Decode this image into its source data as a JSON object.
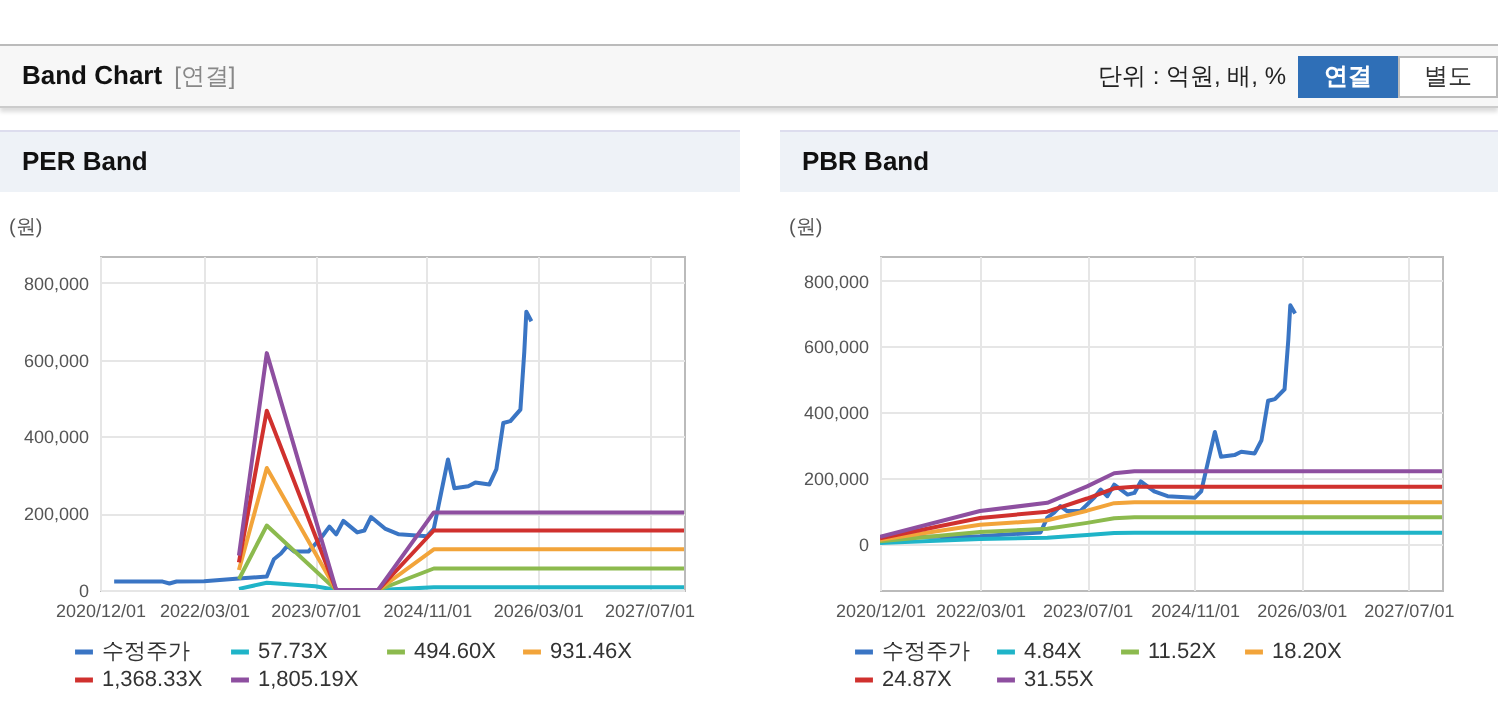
{
  "chart_data": [
    {
      "type": "other",
      "title": "Band Chart",
      "subtitle": "[연결]",
      "annotations": [
        "단위 : 억원, 배, %",
        "연결",
        "별도"
      ]
    },
    {
      "type": "line",
      "title": "PER Band",
      "ylabel": "(원)",
      "grid": true,
      "legend": "bottom",
      "xlim": [
        "2020-12",
        "2027-12"
      ],
      "ylim": [
        0,
        870000
      ],
      "xticks": [
        {
          "value": "2020-12-01",
          "label": "2020/12/01"
        },
        {
          "value": "2022-03-01",
          "label": "2022/03/01"
        },
        {
          "value": "2023-07-01",
          "label": "2023/07/01"
        },
        {
          "value": "2024-11-01",
          "label": "2024/11/01"
        },
        {
          "value": "2026-03-01",
          "label": "2026/03/01"
        },
        {
          "value": "2027-07-01",
          "label": "2027/07/01"
        }
      ],
      "yticks": [
        {
          "value": 0,
          "label": "0"
        },
        {
          "value": 200000,
          "label": "200,000"
        },
        {
          "value": 400000,
          "label": "400,000"
        },
        {
          "value": 600000,
          "label": "600,000"
        },
        {
          "value": 800000,
          "label": "800,000"
        }
      ],
      "series": [
        {
          "name": "수정주가",
          "color": "#3a75c4",
          "x": [
            "2021-02",
            "2021-09",
            "2021-10",
            "2021-11",
            "2022-03",
            "2022-08",
            "2022-12",
            "2023-01",
            "2023-02",
            "2023-03",
            "2023-04",
            "2023-06",
            "2023-08",
            "2023-09",
            "2023-10",
            "2023-11",
            "2024-01",
            "2024-02",
            "2024-03",
            "2024-05",
            "2024-07",
            "2024-11",
            "2024-12",
            "2025-01",
            "2025-02",
            "2025-03",
            "2025-05",
            "2025-06",
            "2025-08",
            "2025-09",
            "2025-10",
            "2025-11",
            "2025-12-15",
            "2026-01-01",
            "2026-01-10",
            "2026-02-01"
          ],
          "values": [
            22000,
            22000,
            17000,
            22000,
            23000,
            30000,
            35000,
            80000,
            95000,
            115000,
            100000,
            100000,
            140000,
            165000,
            145000,
            180000,
            150000,
            155000,
            190000,
            160000,
            145000,
            140000,
            160000,
            250000,
            340000,
            265000,
            270000,
            280000,
            275000,
            315000,
            435000,
            440000,
            470000,
            620000,
            725000,
            700000
          ]
        },
        {
          "name": "57.73X",
          "color": "#1fb4c8",
          "x": [
            "2022-08",
            "2022-12",
            "2023-07",
            "2023-10",
            "2024-04",
            "2024-12",
            "2027-12"
          ],
          "values": [
            3000,
            19000,
            10000,
            0,
            0,
            7000,
            7000
          ]
        },
        {
          "name": "494.60X",
          "color": "#8cba4e",
          "x": [
            "2022-08",
            "2022-12",
            "2023-10",
            "2024-04",
            "2024-12",
            "2027-12"
          ],
          "values": [
            28000,
            168000,
            0,
            0,
            56000,
            56000
          ]
        },
        {
          "name": "931.46X",
          "color": "#f2a43a",
          "x": [
            "2022-08",
            "2022-12",
            "2023-10",
            "2024-04",
            "2024-12",
            "2027-12"
          ],
          "values": [
            52000,
            318000,
            0,
            0,
            106000,
            106000
          ]
        },
        {
          "name": "1,368.33X",
          "color": "#d0312e",
          "x": [
            "2022-08",
            "2022-12",
            "2023-10",
            "2024-04",
            "2024-12",
            "2027-12"
          ],
          "values": [
            72000,
            467000,
            0,
            0,
            155000,
            155000
          ]
        },
        {
          "name": "1,805.19X",
          "color": "#8e4fa0",
          "x": [
            "2022-08",
            "2022-12",
            "2023-10",
            "2024-04",
            "2024-12",
            "2027-12"
          ],
          "values": [
            90000,
            617000,
            0,
            0,
            202000,
            202000
          ]
        }
      ]
    },
    {
      "type": "line",
      "title": "PBR Band",
      "ylabel": "(원)",
      "grid": true,
      "legend": "bottom",
      "xlim": [
        "2020-12",
        "2027-12"
      ],
      "ylim": [
        -140000,
        875000
      ],
      "xticks": [
        {
          "value": "2020-12-01",
          "label": "2020/12/01"
        },
        {
          "value": "2022-03-01",
          "label": "2022/03/01"
        },
        {
          "value": "2023-07-01",
          "label": "2023/07/01"
        },
        {
          "value": "2024-11-01",
          "label": "2024/11/01"
        },
        {
          "value": "2026-03-01",
          "label": "2026/03/01"
        },
        {
          "value": "2027-07-01",
          "label": "2027/07/01"
        }
      ],
      "yticks": [
        {
          "value": 0,
          "label": "0"
        },
        {
          "value": 200000,
          "label": "200,000"
        },
        {
          "value": 400000,
          "label": "400,000"
        },
        {
          "value": 600000,
          "label": "600,000"
        },
        {
          "value": 800000,
          "label": "800,000"
        }
      ],
      "series": [
        {
          "name": "수정주가",
          "color": "#3a75c4",
          "x": [
            "2021-02",
            "2021-09",
            "2021-10",
            "2021-11",
            "2022-03",
            "2022-08",
            "2022-12",
            "2023-01",
            "2023-02",
            "2023-03",
            "2023-04",
            "2023-06",
            "2023-08",
            "2023-09",
            "2023-10",
            "2023-11",
            "2024-01",
            "2024-02",
            "2024-03",
            "2024-05",
            "2024-07",
            "2024-11",
            "2024-12",
            "2025-01",
            "2025-02",
            "2025-03",
            "2025-05",
            "2025-06",
            "2025-08",
            "2025-09",
            "2025-10",
            "2025-11",
            "2025-12-15",
            "2026-01-01",
            "2026-01-10",
            "2026-02-01"
          ],
          "values": [
            22000,
            22000,
            17000,
            22000,
            23000,
            30000,
            35000,
            80000,
            95000,
            115000,
            100000,
            100000,
            140000,
            165000,
            145000,
            180000,
            150000,
            155000,
            190000,
            160000,
            145000,
            140000,
            160000,
            250000,
            340000,
            265000,
            270000,
            280000,
            275000,
            315000,
            435000,
            440000,
            470000,
            620000,
            725000,
            700000
          ]
        },
        {
          "name": "4.84X",
          "color": "#1fb4c8",
          "x": [
            "2020-12",
            "2022-03",
            "2023-01",
            "2023-07",
            "2023-11",
            "2024-02",
            "2027-12"
          ],
          "values": [
            3000,
            15000,
            19000,
            27000,
            33000,
            34000,
            34000
          ]
        },
        {
          "name": "11.52X",
          "color": "#8cba4e",
          "x": [
            "2020-12",
            "2022-03",
            "2023-01",
            "2023-07",
            "2023-11",
            "2024-02",
            "2027-12"
          ],
          "values": [
            8000,
            36000,
            46000,
            64000,
            78000,
            81000,
            81000
          ]
        },
        {
          "name": "18.20X",
          "color": "#f2a43a",
          "x": [
            "2020-12",
            "2022-03",
            "2023-01",
            "2023-07",
            "2023-11",
            "2024-02",
            "2027-12"
          ],
          "values": [
            13000,
            58000,
            72000,
            101000,
            124000,
            127000,
            127000
          ]
        },
        {
          "name": "24.87X",
          "color": "#d0312e",
          "x": [
            "2020-12",
            "2022-03",
            "2023-01",
            "2023-07",
            "2023-11",
            "2024-02",
            "2027-12"
          ],
          "values": [
            17000,
            79000,
            98000,
            138000,
            169000,
            174000,
            174000
          ]
        },
        {
          "name": "31.55X",
          "color": "#8e4fa0",
          "x": [
            "2020-12",
            "2022-03",
            "2023-01",
            "2023-07",
            "2023-11",
            "2024-02",
            "2027-12"
          ],
          "values": [
            22000,
            100000,
            125000,
            175000,
            215000,
            221000,
            221000
          ]
        }
      ]
    }
  ]
}
